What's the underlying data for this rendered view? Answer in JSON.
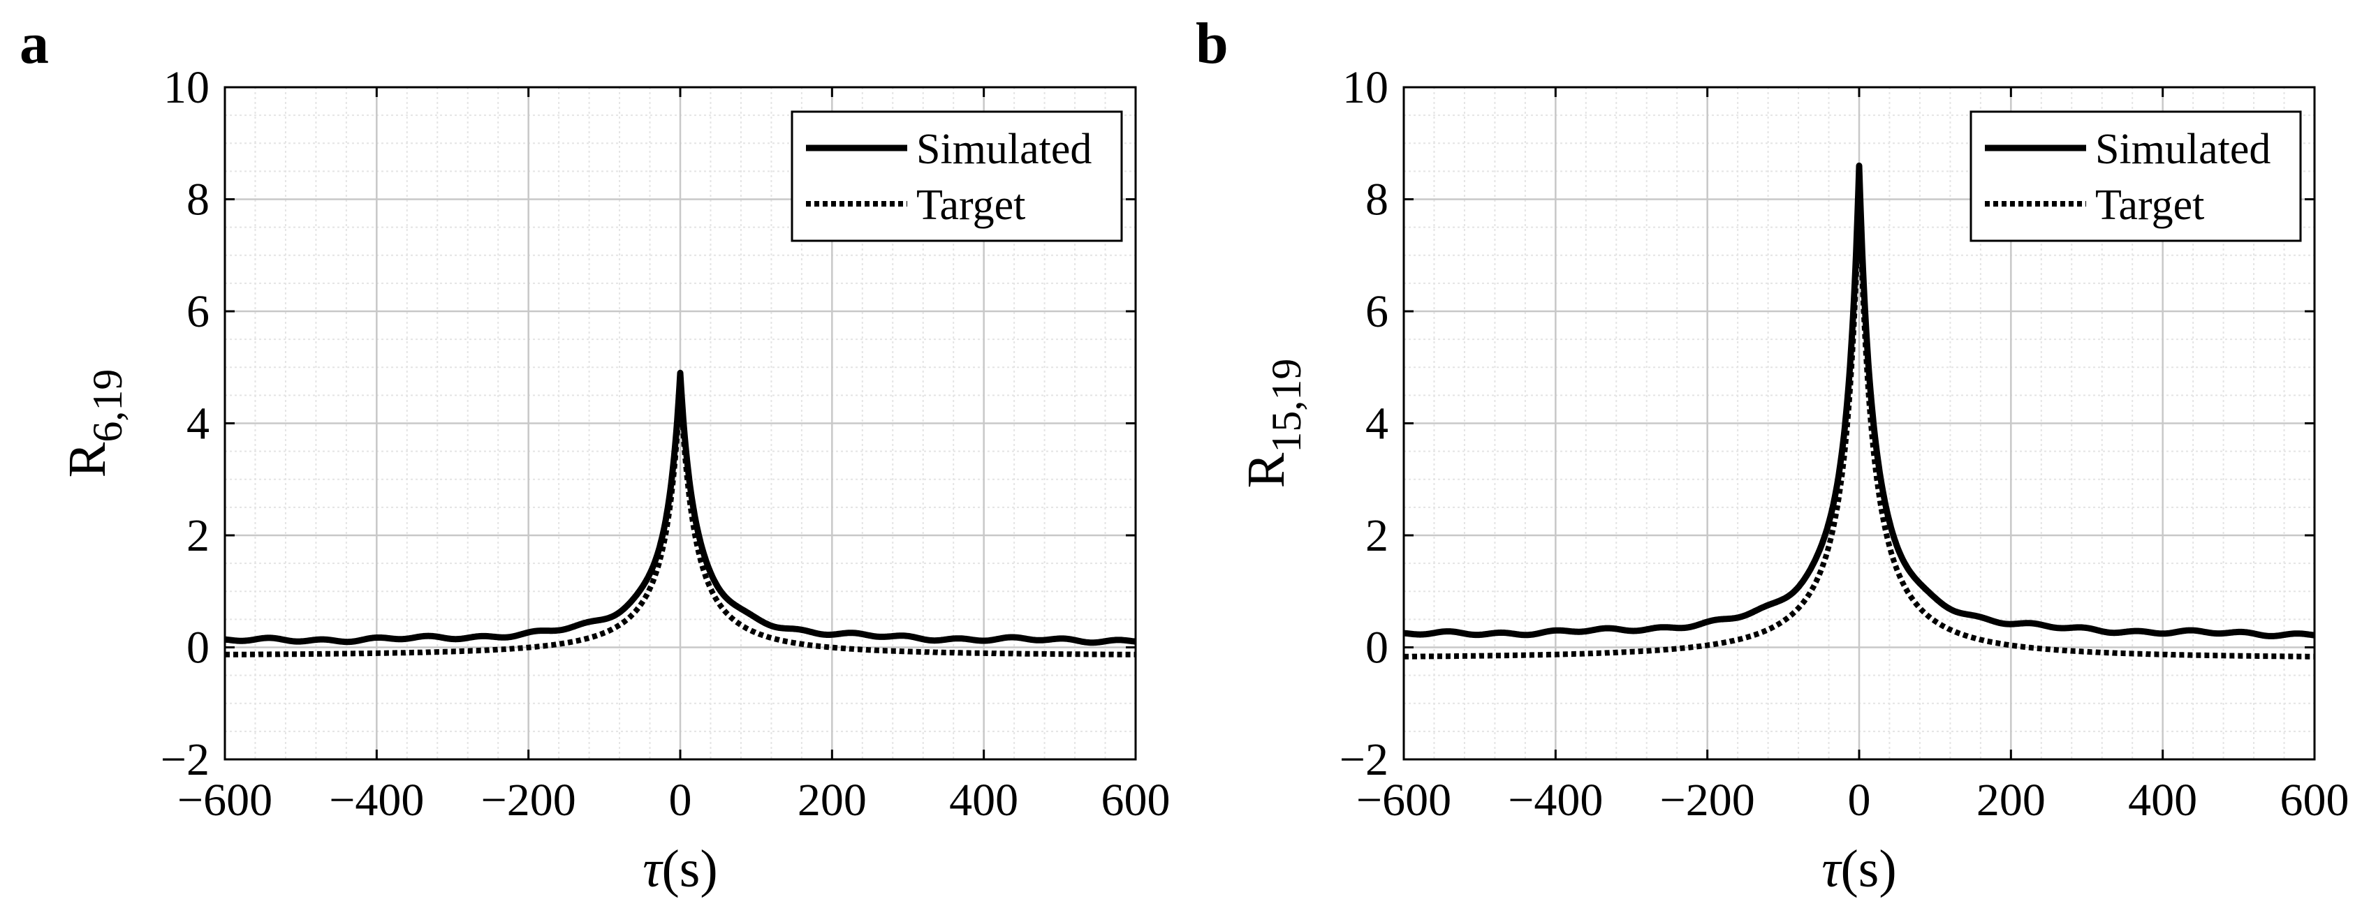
{
  "chart_data": [
    {
      "type": "line",
      "panel_label": "a",
      "title": "",
      "xlabel": "τ(s)",
      "ylabel": {
        "base": "R",
        "subscript": "6,19"
      },
      "xlim": [
        -600,
        600
      ],
      "ylim": [
        -2,
        10
      ],
      "xticks": [
        -600,
        -400,
        -200,
        0,
        200,
        400,
        600
      ],
      "yticks": [
        -2,
        0,
        2,
        4,
        6,
        8,
        10
      ],
      "xtick_labels": [
        "−600",
        "−400",
        "−200",
        "0",
        "200",
        "400",
        "600"
      ],
      "ytick_labels": [
        "−2",
        "0",
        "2",
        "4",
        "6",
        "8",
        "10"
      ],
      "grid": true,
      "minor_grid": true,
      "legend_position": "top-right",
      "series": [
        {
          "name": "Simulated",
          "style": "solid",
          "peak": 4.9,
          "width": 38,
          "offset": 0.1
        },
        {
          "name": "Target",
          "style": "dotted",
          "peak": 4.7,
          "width": 36,
          "offset": -0.1
        }
      ]
    },
    {
      "type": "line",
      "panel_label": "b",
      "title": "",
      "xlabel": "τ(s)",
      "ylabel": {
        "base": "R",
        "subscript": "15,19"
      },
      "xlim": [
        -600,
        600
      ],
      "ylim": [
        -2,
        10
      ],
      "xticks": [
        -600,
        -400,
        -200,
        0,
        200,
        400,
        600
      ],
      "yticks": [
        -2,
        0,
        2,
        4,
        6,
        8,
        10
      ],
      "xtick_labels": [
        "−600",
        "−400",
        "−200",
        "0",
        "200",
        "400",
        "600"
      ],
      "ytick_labels": [
        "−2",
        "0",
        "2",
        "4",
        "6",
        "8",
        "10"
      ],
      "grid": true,
      "minor_grid": true,
      "legend_position": "top-right",
      "series": [
        {
          "name": "Simulated",
          "style": "solid",
          "peak": 8.6,
          "width": 36,
          "offset": 0.2
        },
        {
          "name": "Target",
          "style": "dotted",
          "peak": 8.2,
          "width": 35,
          "offset": -0.15
        }
      ]
    }
  ]
}
